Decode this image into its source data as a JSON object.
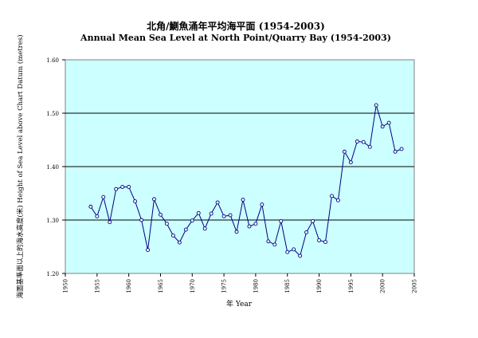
{
  "chart_data": {
    "type": "line",
    "title_zh": "北角/鰂魚涌年平均海平面 (1954-2003)",
    "title_en": "Annual Mean Sea Level at North Point/Quarry Bay (1954-2003)",
    "xlabel": "年 Year",
    "ylabel": "海圖基準面以上的海水高度(米)   Height of Sea Level above Chart Datum (metres)",
    "xlim": [
      1950,
      2005
    ],
    "ylim": [
      1.2,
      1.6
    ],
    "x_ticks": [
      "1950",
      "1955",
      "1960",
      "1965",
      "1970",
      "1975",
      "1980",
      "1985",
      "1990",
      "1995",
      "2000",
      "2005"
    ],
    "y_ticks": [
      "1.20",
      "1.30",
      "1.40",
      "1.50",
      "1.60"
    ],
    "grid": "horizontal",
    "colors": {
      "plot_bg": "#ccffff",
      "line": "#000080",
      "grid": "#000000"
    },
    "series": [
      {
        "x": [
          1954,
          1955,
          1956,
          1957,
          1958,
          1959,
          1960,
          1961,
          1962,
          1963,
          1964,
          1965,
          1966,
          1967,
          1968,
          1969,
          1970,
          1971,
          1972,
          1973,
          1974,
          1975,
          1976,
          1977,
          1978,
          1979,
          1980,
          1981,
          1982,
          1983,
          1984,
          1985,
          1986,
          1987,
          1988,
          1989,
          1990,
          1991,
          1992,
          1993,
          1994,
          1995,
          1996,
          1997,
          1998,
          1999,
          2000,
          2001,
          2002,
          2003
        ],
        "values": [
          1.325,
          1.307,
          1.343,
          1.296,
          1.358,
          1.362,
          1.362,
          1.335,
          1.3,
          1.244,
          1.339,
          1.31,
          1.293,
          1.271,
          1.258,
          1.282,
          1.299,
          1.313,
          1.284,
          1.312,
          1.333,
          1.307,
          1.309,
          1.278,
          1.338,
          1.288,
          1.293,
          1.329,
          1.26,
          1.254,
          1.298,
          1.24,
          1.245,
          1.233,
          1.277,
          1.298,
          1.262,
          1.259,
          1.345,
          1.337,
          1.428,
          1.408,
          1.447,
          1.446,
          1.437,
          1.515,
          1.475,
          1.482,
          1.428,
          1.433
        ]
      }
    ]
  }
}
